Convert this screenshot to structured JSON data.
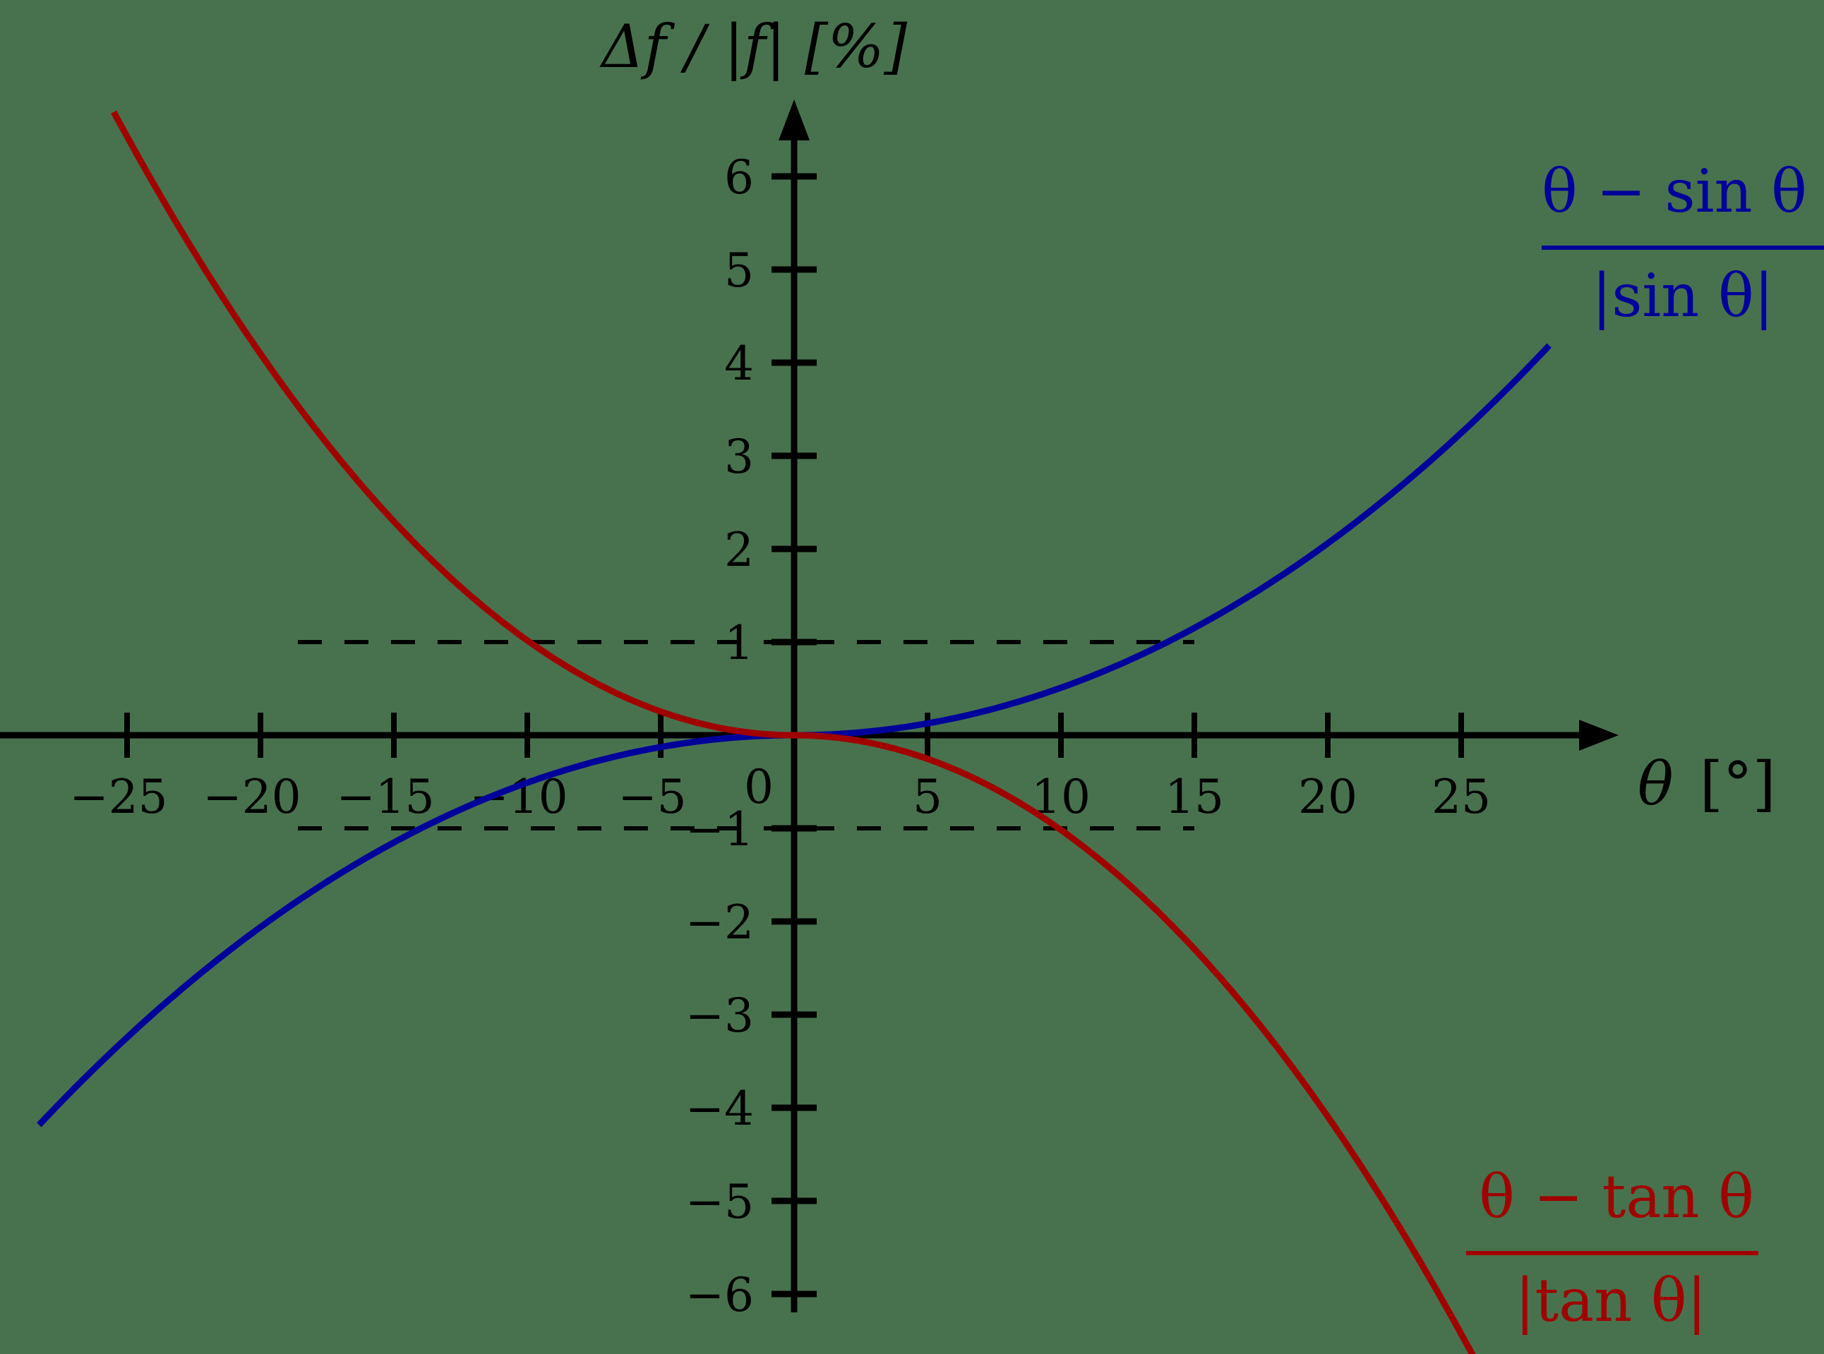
{
  "chart_data": {
    "type": "line",
    "title": "",
    "xlabel": "θ  [°]",
    "ylabel": "Δf / |f|  [%]",
    "xlim": [
      -29.8,
      31.3
    ],
    "ylim": [
      -6.5,
      7.0
    ],
    "grid": false,
    "legend_position": "inline labels at curve ends",
    "x_ticks": [
      -25,
      -20,
      -15,
      -10,
      -5,
      0,
      5,
      10,
      15,
      20,
      25
    ],
    "x_tick_labels": [
      "−25",
      "−20",
      "−15",
      "−10",
      "−5",
      "0",
      "5",
      "10",
      "15",
      "20",
      "25"
    ],
    "y_ticks": [
      -6,
      -5,
      -4,
      -3,
      -2,
      -1,
      1,
      2,
      3,
      4,
      5,
      6
    ],
    "y_tick_labels": [
      "−6",
      "−5",
      "−4",
      "−3",
      "−2",
      "−1",
      "1",
      "2",
      "3",
      "4",
      "5",
      "6"
    ],
    "reference_lines": [
      {
        "y": 1,
        "x_range": [
          -18.6,
          15
        ],
        "style": "dashed"
      },
      {
        "y": -1,
        "x_range": [
          -18.6,
          15
        ],
        "style": "dashed"
      }
    ],
    "series": [
      {
        "name": "(θ − sin θ) / |sin θ|",
        "color": "#00009A",
        "x_range": [
          -28.3,
          28.3
        ],
        "x": [
          -28.3,
          -25,
          -20,
          -15,
          -10,
          -5,
          0,
          5,
          10,
          15,
          20,
          25,
          28.3
        ],
        "values": [
          -4.17,
          -3.22,
          -2.06,
          -1.15,
          -0.51,
          -0.13,
          0,
          0.13,
          0.51,
          1.15,
          2.06,
          3.22,
          4.17
        ]
      },
      {
        "name": "(θ − tan θ) / |tan θ|",
        "color": "#A00000",
        "x_range": [
          -25.5,
          25.5
        ],
        "x": [
          -25.5,
          -25,
          -20,
          -15,
          -10,
          -5,
          0,
          5,
          10,
          15,
          20,
          25,
          25.5
        ],
        "values": [
          6.68,
          6.41,
          4.08,
          2.29,
          1.01,
          0.25,
          0,
          -0.25,
          -1.01,
          -2.29,
          -4.08,
          -6.41,
          -6.68
        ]
      }
    ]
  },
  "labels": {
    "y_axis_title": "Δf / |f|  [%]",
    "x_axis_title_theta": "θ",
    "x_axis_title_unit": "[°]",
    "sin_label": {
      "numerator": "θ − sin θ",
      "denominator": "|sin θ|"
    },
    "tan_label": {
      "numerator": "θ − tan θ",
      "denominator": "|tan θ|"
    }
  },
  "colors": {
    "background": "#48724E",
    "axis": "#000000",
    "sin_series": "#00009A",
    "tan_series": "#A00000"
  }
}
